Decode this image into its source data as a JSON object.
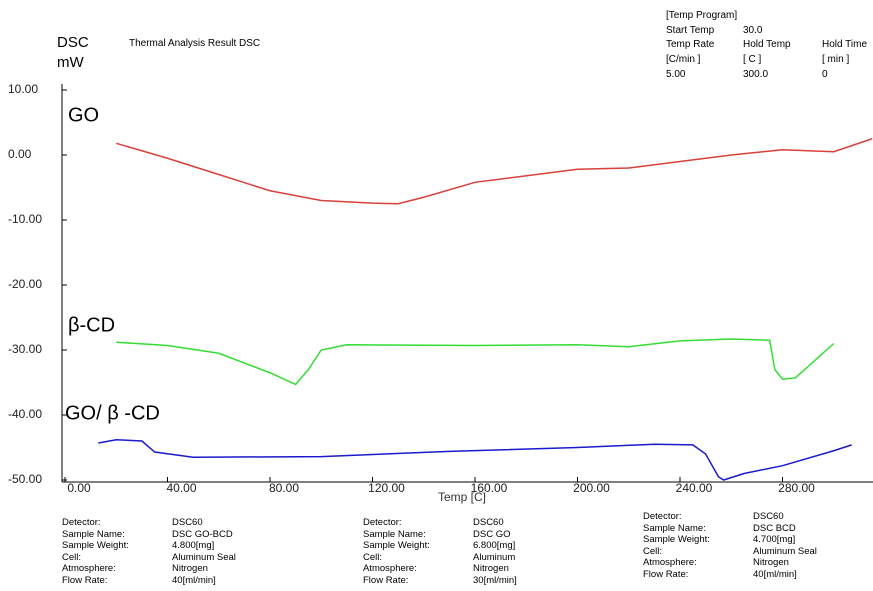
{
  "header": {
    "instrument": "DSC",
    "unit": "mW",
    "title": "Thermal Analysis Result DSC"
  },
  "temp_program": {
    "title": "[Temp Program]",
    "rows": [
      [
        "Start Temp",
        "30.0"
      ],
      [
        "Temp Rate",
        "Hold Temp",
        "Hold Time"
      ],
      [
        "[C/min ]",
        "[ C ]",
        "[ min ]"
      ],
      [
        "5.00",
        "300.0",
        "0"
      ]
    ]
  },
  "details": [
    {
      "labels": [
        "Detector:",
        "Sample Name:",
        "Sample Weight:",
        "Cell:",
        "Atmosphere:",
        "Flow Rate:"
      ],
      "values": [
        "DSC60",
        "DSC GO-BCD",
        "4.800[mg]",
        "Aluminum Seal",
        "Nitrogen",
        "40[ml/min]"
      ]
    },
    {
      "labels": [
        "Detector:",
        "Sample Name:",
        "Sample Weight:",
        "Cell:",
        "Atmosphere:",
        "Flow Rate:"
      ],
      "values": [
        "DSC60",
        "DSC GO",
        "6.800[mg]",
        "Aluminum",
        "Nitrogen",
        "30[ml/min]"
      ]
    },
    {
      "labels": [
        "Detector:",
        "Sample Name:",
        "Sample Weight:",
        "Cell:",
        "Atmosphere:",
        "Flow Rate:"
      ],
      "values": [
        "DSC60",
        "DSC BCD",
        "4.700[mg]",
        "Aluminum Seal",
        "Nitrogen",
        "40[ml/min]"
      ]
    }
  ],
  "chart_data": {
    "type": "line",
    "x_label": "Temp [C]",
    "xlim": [
      0,
      315
    ],
    "ylim": [
      -50,
      10
    ],
    "xticks": [
      {
        "value": 0,
        "label": "0.00"
      },
      {
        "value": 40,
        "label": "40.00"
      },
      {
        "value": 80,
        "label": "80.00"
      },
      {
        "value": 120,
        "label": "120.00"
      },
      {
        "value": 160,
        "label": "160.00"
      },
      {
        "value": 200,
        "label": "200.00"
      },
      {
        "value": 240,
        "label": "240.00"
      },
      {
        "value": 280,
        "label": "280.00"
      }
    ],
    "yticks": [
      {
        "value": 10,
        "label": "10.00"
      },
      {
        "value": 0,
        "label": "0.00"
      },
      {
        "value": -10,
        "label": "-10.00"
      },
      {
        "value": -20,
        "label": "-20.00"
      },
      {
        "value": -30,
        "label": "-30.00"
      },
      {
        "value": -40,
        "label": "-40.00"
      },
      {
        "value": -50,
        "label": "-50.00"
      }
    ],
    "series": [
      {
        "name": "GO",
        "color": "#d8403a",
        "x": [
          20,
          40,
          60,
          80,
          100,
          120,
          130,
          140,
          160,
          200,
          220,
          240,
          260,
          280,
          300,
          315
        ],
        "values": [
          1.8,
          -0.5,
          -3,
          -5.5,
          -7,
          -7.4,
          -7.5,
          -6.5,
          -4.2,
          -2.2,
          -2,
          -1,
          0,
          0.8,
          0.5,
          2.5
        ]
      },
      {
        "name": "β-CD",
        "color": "#33dd33",
        "x": [
          20,
          40,
          60,
          80,
          90,
          95,
          100,
          110,
          160,
          200,
          220,
          240,
          260,
          275,
          277,
          280,
          285,
          300
        ],
        "values": [
          -28.8,
          -29.3,
          -30.5,
          -33.5,
          -35.3,
          -33,
          -30,
          -29.2,
          -29.3,
          -29.2,
          -29.5,
          -28.6,
          -28.3,
          -28.5,
          -33,
          -34.5,
          -34.3,
          -29
        ]
      },
      {
        "name": "GO/ β -CD",
        "color": "#1a1acc",
        "x": [
          13,
          20,
          30,
          35,
          50,
          100,
          150,
          200,
          230,
          245,
          250,
          255,
          257,
          265,
          280,
          300,
          307
        ],
        "values": [
          -44.3,
          -43.8,
          -44,
          -45.7,
          -46.5,
          -46.4,
          -45.6,
          -45,
          -44.5,
          -44.6,
          -46,
          -49.5,
          -50,
          -49,
          -47.8,
          -45.5,
          -44.6
        ]
      }
    ]
  }
}
